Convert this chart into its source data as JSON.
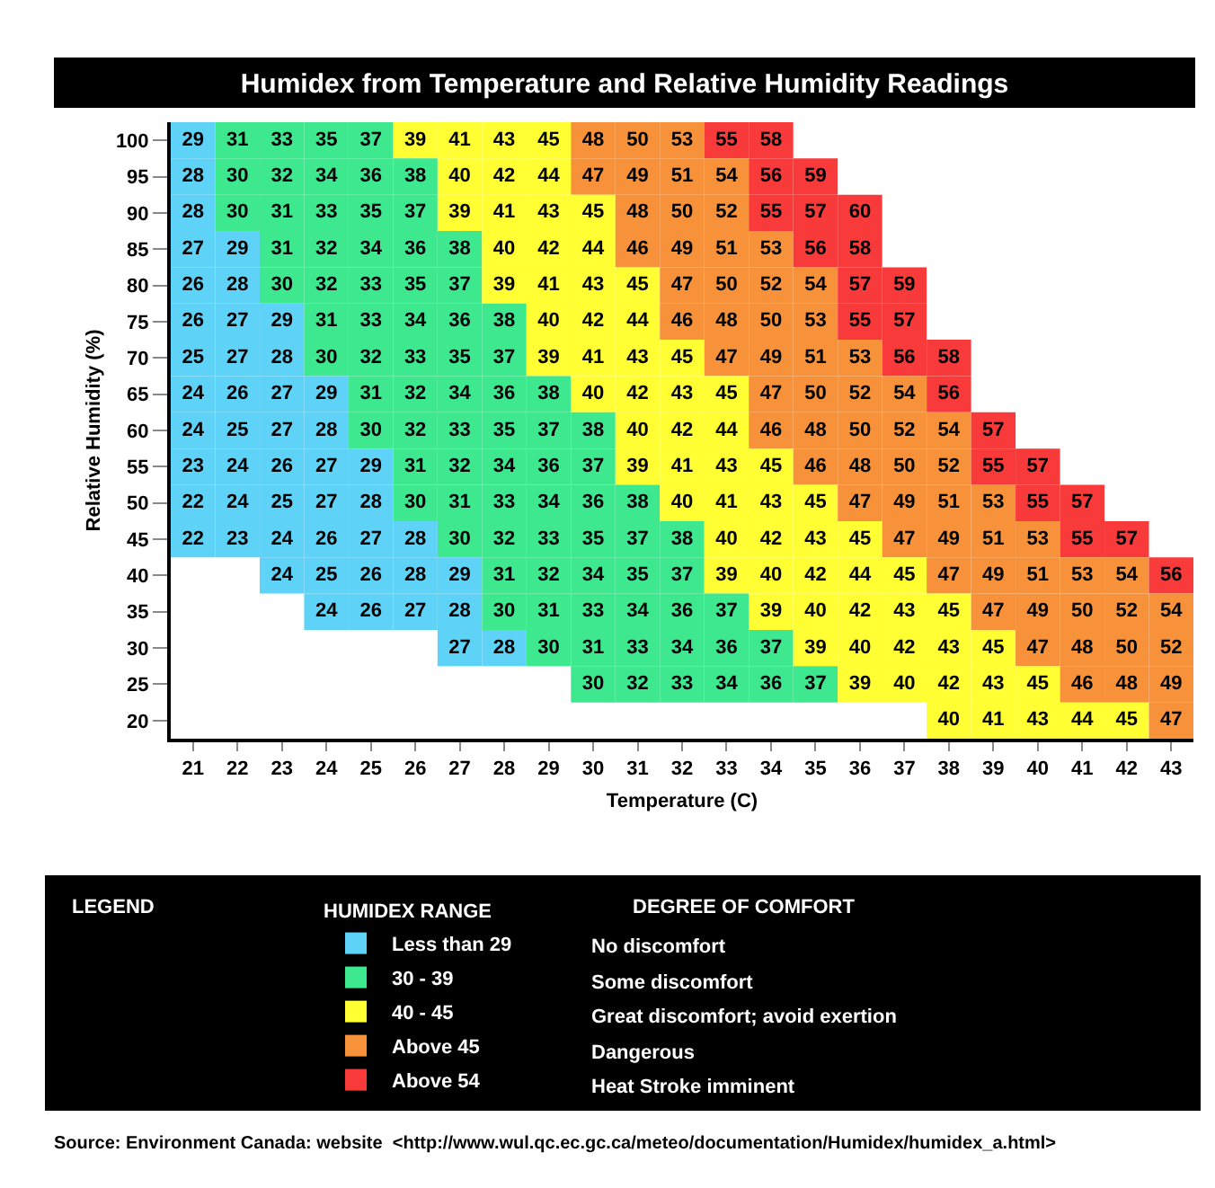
{
  "chart_data": {
    "type": "heatmap",
    "title": "Humidex from Temperature and Relative Humidity Readings",
    "xlabel": "Temperature (C)",
    "ylabel": "Relative Humidity (%)",
    "legend_title": "HUMIDEX RANGE",
    "legend": "bottom",
    "categories": [
      "21",
      "22",
      "23",
      "24",
      "25",
      "26",
      "27",
      "28",
      "29",
      "30",
      "31",
      "32",
      "33",
      "34",
      "35",
      "36",
      "37",
      "38",
      "39",
      "40",
      "41",
      "42",
      "43"
    ],
    "y_categories": [
      "100",
      "95",
      "90",
      "85",
      "80",
      "75",
      "70",
      "65",
      "60",
      "55",
      "50",
      "45",
      "40",
      "35",
      "30",
      "25",
      "20"
    ],
    "cells": [
      [
        29,
        31,
        33,
        35,
        37,
        39,
        41,
        43,
        45,
        48,
        50,
        53,
        55,
        58,
        null,
        null,
        null,
        null,
        null,
        null,
        null,
        null,
        null
      ],
      [
        28,
        30,
        32,
        34,
        36,
        38,
        40,
        42,
        44,
        47,
        49,
        51,
        54,
        56,
        59,
        null,
        null,
        null,
        null,
        null,
        null,
        null,
        null
      ],
      [
        28,
        30,
        31,
        33,
        35,
        37,
        39,
        41,
        43,
        45,
        48,
        50,
        52,
        55,
        57,
        60,
        null,
        null,
        null,
        null,
        null,
        null,
        null
      ],
      [
        27,
        29,
        31,
        32,
        34,
        36,
        38,
        40,
        42,
        44,
        46,
        49,
        51,
        53,
        56,
        58,
        null,
        null,
        null,
        null,
        null,
        null,
        null
      ],
      [
        26,
        28,
        30,
        32,
        33,
        35,
        37,
        39,
        41,
        43,
        45,
        47,
        50,
        52,
        54,
        57,
        59,
        null,
        null,
        null,
        null,
        null,
        null
      ],
      [
        26,
        27,
        29,
        31,
        33,
        34,
        36,
        38,
        40,
        42,
        44,
        46,
        48,
        50,
        53,
        55,
        57,
        null,
        null,
        null,
        null,
        null,
        null
      ],
      [
        25,
        27,
        28,
        30,
        32,
        33,
        35,
        37,
        39,
        41,
        43,
        45,
        47,
        49,
        51,
        53,
        56,
        58,
        null,
        null,
        null,
        null,
        null
      ],
      [
        24,
        26,
        27,
        29,
        31,
        32,
        34,
        36,
        38,
        40,
        42,
        43,
        45,
        47,
        50,
        52,
        54,
        56,
        null,
        null,
        null,
        null,
        null
      ],
      [
        24,
        25,
        27,
        28,
        30,
        32,
        33,
        35,
        37,
        38,
        40,
        42,
        44,
        46,
        48,
        50,
        52,
        54,
        57,
        null,
        null,
        null,
        null
      ],
      [
        23,
        24,
        26,
        27,
        29,
        31,
        32,
        34,
        36,
        37,
        39,
        41,
        43,
        45,
        46,
        48,
        50,
        52,
        55,
        57,
        null,
        null,
        null
      ],
      [
        22,
        24,
        25,
        27,
        28,
        30,
        31,
        33,
        34,
        36,
        38,
        40,
        41,
        43,
        45,
        47,
        49,
        51,
        53,
        55,
        57,
        null,
        null
      ],
      [
        22,
        23,
        24,
        26,
        27,
        28,
        30,
        32,
        33,
        35,
        37,
        38,
        40,
        42,
        43,
        45,
        47,
        49,
        51,
        53,
        55,
        57,
        null
      ],
      [
        null,
        null,
        24,
        25,
        26,
        28,
        29,
        31,
        32,
        34,
        35,
        37,
        39,
        40,
        42,
        44,
        45,
        47,
        49,
        51,
        53,
        54,
        56
      ],
      [
        null,
        null,
        null,
        24,
        26,
        27,
        28,
        30,
        31,
        33,
        34,
        36,
        37,
        39,
        40,
        42,
        43,
        45,
        47,
        49,
        50,
        52,
        54
      ],
      [
        null,
        null,
        null,
        null,
        null,
        null,
        27,
        28,
        30,
        31,
        33,
        34,
        36,
        37,
        39,
        40,
        42,
        43,
        45,
        47,
        48,
        50,
        52
      ],
      [
        null,
        null,
        null,
        null,
        null,
        null,
        null,
        null,
        null,
        30,
        32,
        33,
        34,
        36,
        37,
        39,
        40,
        42,
        43,
        45,
        46,
        48,
        49
      ],
      [
        null,
        null,
        null,
        null,
        null,
        null,
        null,
        null,
        null,
        null,
        null,
        null,
        null,
        null,
        null,
        null,
        null,
        40,
        41,
        43,
        44,
        45,
        47
      ]
    ],
    "colors": [
      [
        "#5fd3f7",
        "#3de88e",
        "#3de88e",
        "#3de88e",
        "#3de88e",
        "#ffff33",
        "#ffff33",
        "#ffff33",
        "#ffff33",
        "#f7923a",
        "#f7923a",
        "#f7923a",
        "#f83a3a",
        "#f83a3a",
        null,
        null,
        null,
        null,
        null,
        null,
        null,
        null,
        null
      ],
      [
        "#5fd3f7",
        "#3de88e",
        "#3de88e",
        "#3de88e",
        "#3de88e",
        "#3de88e",
        "#ffff33",
        "#ffff33",
        "#ffff33",
        "#f7923a",
        "#f7923a",
        "#f7923a",
        "#f7923a",
        "#f83a3a",
        "#f83a3a",
        null,
        null,
        null,
        null,
        null,
        null,
        null,
        null
      ],
      [
        "#5fd3f7",
        "#3de88e",
        "#3de88e",
        "#3de88e",
        "#3de88e",
        "#3de88e",
        "#ffff33",
        "#ffff33",
        "#ffff33",
        "#ffff33",
        "#f7923a",
        "#f7923a",
        "#f7923a",
        "#f83a3a",
        "#f83a3a",
        "#f83a3a",
        null,
        null,
        null,
        null,
        null,
        null,
        null
      ],
      [
        "#5fd3f7",
        "#5fd3f7",
        "#3de88e",
        "#3de88e",
        "#3de88e",
        "#3de88e",
        "#3de88e",
        "#ffff33",
        "#ffff33",
        "#ffff33",
        "#f7923a",
        "#f7923a",
        "#f7923a",
        "#f7923a",
        "#f83a3a",
        "#f83a3a",
        null,
        null,
        null,
        null,
        null,
        null,
        null
      ],
      [
        "#5fd3f7",
        "#5fd3f7",
        "#3de88e",
        "#3de88e",
        "#3de88e",
        "#3de88e",
        "#3de88e",
        "#ffff33",
        "#ffff33",
        "#ffff33",
        "#ffff33",
        "#f7923a",
        "#f7923a",
        "#f7923a",
        "#f7923a",
        "#f83a3a",
        "#f83a3a",
        null,
        null,
        null,
        null,
        null,
        null
      ],
      [
        "#5fd3f7",
        "#5fd3f7",
        "#5fd3f7",
        "#3de88e",
        "#3de88e",
        "#3de88e",
        "#3de88e",
        "#3de88e",
        "#ffff33",
        "#ffff33",
        "#ffff33",
        "#f7923a",
        "#f7923a",
        "#f7923a",
        "#f7923a",
        "#f83a3a",
        "#f83a3a",
        null,
        null,
        null,
        null,
        null,
        null
      ],
      [
        "#5fd3f7",
        "#5fd3f7",
        "#5fd3f7",
        "#3de88e",
        "#3de88e",
        "#3de88e",
        "#3de88e",
        "#3de88e",
        "#ffff33",
        "#ffff33",
        "#ffff33",
        "#ffff33",
        "#f7923a",
        "#f7923a",
        "#f7923a",
        "#f7923a",
        "#f83a3a",
        "#f83a3a",
        null,
        null,
        null,
        null,
        null
      ],
      [
        "#5fd3f7",
        "#5fd3f7",
        "#5fd3f7",
        "#5fd3f7",
        "#3de88e",
        "#3de88e",
        "#3de88e",
        "#3de88e",
        "#3de88e",
        "#ffff33",
        "#ffff33",
        "#ffff33",
        "#ffff33",
        "#f7923a",
        "#f7923a",
        "#f7923a",
        "#f7923a",
        "#f83a3a",
        null,
        null,
        null,
        null,
        null
      ],
      [
        "#5fd3f7",
        "#5fd3f7",
        "#5fd3f7",
        "#5fd3f7",
        "#3de88e",
        "#3de88e",
        "#3de88e",
        "#3de88e",
        "#3de88e",
        "#3de88e",
        "#ffff33",
        "#ffff33",
        "#ffff33",
        "#f7923a",
        "#f7923a",
        "#f7923a",
        "#f7923a",
        "#f7923a",
        "#f83a3a",
        null,
        null,
        null,
        null
      ],
      [
        "#5fd3f7",
        "#5fd3f7",
        "#5fd3f7",
        "#5fd3f7",
        "#5fd3f7",
        "#3de88e",
        "#3de88e",
        "#3de88e",
        "#3de88e",
        "#3de88e",
        "#ffff33",
        "#ffff33",
        "#ffff33",
        "#ffff33",
        "#f7923a",
        "#f7923a",
        "#f7923a",
        "#f7923a",
        "#f83a3a",
        "#f83a3a",
        null,
        null,
        null
      ],
      [
        "#5fd3f7",
        "#5fd3f7",
        "#5fd3f7",
        "#5fd3f7",
        "#5fd3f7",
        "#3de88e",
        "#3de88e",
        "#3de88e",
        "#3de88e",
        "#3de88e",
        "#3de88e",
        "#ffff33",
        "#ffff33",
        "#ffff33",
        "#ffff33",
        "#f7923a",
        "#f7923a",
        "#f7923a",
        "#f7923a",
        "#f83a3a",
        "#f83a3a",
        null,
        null
      ],
      [
        "#5fd3f7",
        "#5fd3f7",
        "#5fd3f7",
        "#5fd3f7",
        "#5fd3f7",
        "#5fd3f7",
        "#3de88e",
        "#3de88e",
        "#3de88e",
        "#3de88e",
        "#3de88e",
        "#3de88e",
        "#ffff33",
        "#ffff33",
        "#ffff33",
        "#ffff33",
        "#f7923a",
        "#f7923a",
        "#f7923a",
        "#f7923a",
        "#f83a3a",
        "#f83a3a",
        null
      ],
      [
        null,
        null,
        "#5fd3f7",
        "#5fd3f7",
        "#5fd3f7",
        "#5fd3f7",
        "#5fd3f7",
        "#3de88e",
        "#3de88e",
        "#3de88e",
        "#3de88e",
        "#3de88e",
        "#ffff33",
        "#ffff33",
        "#ffff33",
        "#ffff33",
        "#ffff33",
        "#f7923a",
        "#f7923a",
        "#f7923a",
        "#f7923a",
        "#f7923a",
        "#f83a3a"
      ],
      [
        null,
        null,
        null,
        "#5fd3f7",
        "#5fd3f7",
        "#5fd3f7",
        "#5fd3f7",
        "#3de88e",
        "#3de88e",
        "#3de88e",
        "#3de88e",
        "#3de88e",
        "#3de88e",
        "#ffff33",
        "#ffff33",
        "#ffff33",
        "#ffff33",
        "#ffff33",
        "#f7923a",
        "#f7923a",
        "#f7923a",
        "#f7923a",
        "#f7923a"
      ],
      [
        null,
        null,
        null,
        null,
        null,
        null,
        "#5fd3f7",
        "#5fd3f7",
        "#3de88e",
        "#3de88e",
        "#3de88e",
        "#3de88e",
        "#3de88e",
        "#3de88e",
        "#ffff33",
        "#ffff33",
        "#ffff33",
        "#ffff33",
        "#ffff33",
        "#f7923a",
        "#f7923a",
        "#f7923a",
        "#f7923a"
      ],
      [
        null,
        null,
        null,
        null,
        null,
        null,
        null,
        null,
        null,
        "#3de88e",
        "#3de88e",
        "#3de88e",
        "#3de88e",
        "#3de88e",
        "#3de88e",
        "#ffff33",
        "#ffff33",
        "#ffff33",
        "#ffff33",
        "#ffff33",
        "#f7923a",
        "#f7923a",
        "#f7923a"
      ],
      [
        null,
        null,
        null,
        null,
        null,
        null,
        null,
        null,
        null,
        null,
        null,
        null,
        null,
        null,
        null,
        null,
        null,
        "#ffff33",
        "#ffff33",
        "#ffff33",
        "#ffff33",
        "#ffff33",
        "#f7923a"
      ]
    ],
    "series": [
      {
        "name": "Less than 29",
        "color": "#5fd3f7",
        "values": [
          null,
          null,
          null,
          null,
          null,
          null,
          null,
          null,
          null,
          null,
          null,
          null,
          null,
          null,
          null,
          null,
          null,
          null,
          null,
          null,
          null,
          null,
          null
        ]
      },
      {
        "name": "30 - 39",
        "color": "#3de88e",
        "values": [
          null,
          null,
          null,
          null,
          null,
          null,
          null,
          null,
          null,
          null,
          null,
          null,
          null,
          null,
          null,
          null,
          null,
          null,
          null,
          null,
          null,
          null,
          null
        ]
      },
      {
        "name": "40 - 45",
        "color": "#ffff33",
        "values": [
          null,
          null,
          null,
          null,
          null,
          null,
          null,
          null,
          null,
          null,
          null,
          null,
          null,
          null,
          null,
          null,
          null,
          null,
          null,
          null,
          null,
          null,
          null
        ]
      },
      {
        "name": "Above 45",
        "color": "#f7923a",
        "values": [
          null,
          null,
          null,
          null,
          null,
          null,
          null,
          null,
          null,
          null,
          null,
          null,
          null,
          null,
          null,
          null,
          null,
          null,
          null,
          null,
          null,
          null,
          null
        ]
      },
      {
        "name": "Above 54",
        "color": "#f83a3a",
        "values": [
          null,
          null,
          null,
          null,
          null,
          null,
          null,
          null,
          null,
          null,
          null,
          null,
          null,
          null,
          null,
          null,
          null,
          null,
          null,
          null,
          null,
          null,
          null
        ]
      }
    ],
    "data_labels": true,
    "annotations": [
      "LEGEND",
      "DEGREE OF COMFORT",
      "No discomfort",
      "Some discomfort",
      "Great discomfort; avoid exertion",
      "Dangerous",
      "Heat Stroke imminent",
      "Source: Environment Canada: website  <http://www.wul.qc.ec.gc.ca/meteo/documentation/Humidex/humidex_a.html>"
    ]
  }
}
